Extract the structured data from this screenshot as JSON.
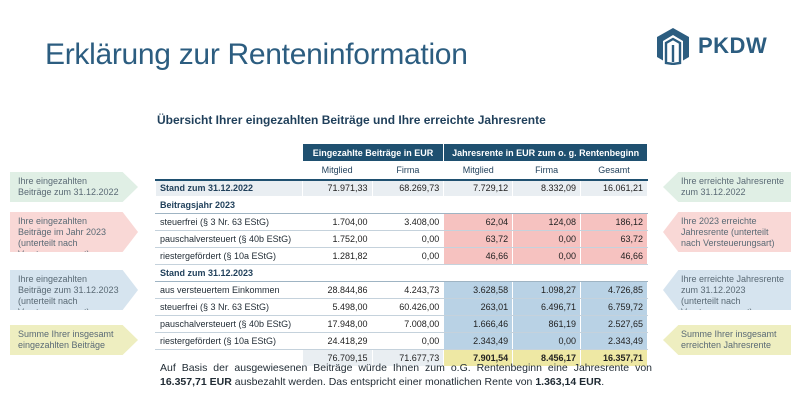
{
  "title": "Erklärung zur Renteninformation",
  "logo": {
    "text": "PKDW",
    "icon": "pkdw-house-logo-icon",
    "color": "#2c5d80"
  },
  "subtitle": "Übersicht Ihrer eingezahlten Beiträge und Ihre erreichte Jahresrente",
  "table": {
    "header_contrib": "Eingezahlte Beiträge in EUR",
    "header_pension": "Jahresrente in EUR zum o. g. Rentenbeginn",
    "sub_mitglied": "Mitglied",
    "sub_firma": "Firma",
    "sub_mitglied2": "Mitglied",
    "sub_firma2": "Firma",
    "sub_gesamt": "Gesamt",
    "stand_2022": {
      "label": "Stand zum 31.12.2022",
      "mitglied": "71.971,33",
      "firma": "68.269,73",
      "r_mitglied": "7.729,12",
      "r_firma": "8.332,09",
      "r_gesamt": "16.061,21"
    },
    "section_2023": "Beitragsjahr 2023",
    "rows_2023": [
      {
        "label": "steuerfrei (§ 3 Nr. 63 EStG)",
        "mitglied": "1.704,00",
        "firma": "3.408,00",
        "r_mitglied": "62,04",
        "r_firma": "124,08",
        "r_gesamt": "186,12"
      },
      {
        "label": "pauschalversteuert (§ 40b EStG)",
        "mitglied": "1.752,00",
        "firma": "0,00",
        "r_mitglied": "63,72",
        "r_firma": "0,00",
        "r_gesamt": "63,72"
      },
      {
        "label": "riestergefördert (§ 10a EStG)",
        "mitglied": "1.281,82",
        "firma": "0,00",
        "r_mitglied": "46,66",
        "r_firma": "0,00",
        "r_gesamt": "46,66"
      }
    ],
    "section_stand": "Stand zum 31.12.2023",
    "rows_stand": [
      {
        "label": "aus versteuertem Einkommen",
        "mitglied": "28.844,86",
        "firma": "4.243,73",
        "r_mitglied": "3.628,58",
        "r_firma": "1.098,27",
        "r_gesamt": "4.726,85"
      },
      {
        "label": "steuerfrei (§ 3 Nr. 63 EStG)",
        "mitglied": "5.498,00",
        "firma": "60.426,00",
        "r_mitglied": "263,01",
        "r_firma": "6.496,71",
        "r_gesamt": "6.759,72"
      },
      {
        "label": "pauschalversteuert (§ 40b EStG)",
        "mitglied": "17.948,00",
        "firma": "7.008,00",
        "r_mitglied": "1.666,46",
        "r_firma": "861,19",
        "r_gesamt": "2.527,65"
      },
      {
        "label": "riestergefördert (§ 10a EStG)",
        "mitglied": "24.418,29",
        "firma": "0,00",
        "r_mitglied": "2.343,49",
        "r_firma": "0,00",
        "r_gesamt": "2.343,49"
      }
    ],
    "total": {
      "mitglied": "76.709,15",
      "firma": "71.677,73",
      "r_mitglied": "7.901,54",
      "r_firma": "8.456,17",
      "r_gesamt": "16.357,71"
    }
  },
  "notes_left": [
    "Ihre eingezahlten Beiträge zum 31.12.2022",
    "Ihre eingezahlten Beiträge im Jahr 2023 (unterteilt nach Versteuerungsart)",
    "Ihre eingezahlten Beiträge zum 31.12.2023 (unterteilt nach Versteuerungsart)",
    "Summe Ihrer insgesamt eingezahlten Beiträge"
  ],
  "notes_right": [
    "Ihre erreichte Jahresrente zum 31.12.2022",
    "Ihre 2023 erreichte Jahresrente (unterteilt nach Versteuerungsart)",
    "Ihre erreichte Jahresrente zum 31.12.2023 (unterteilt nach Versteuerungsart)",
    "Summe Ihrer insgesamt erreichten Jahresrente"
  ],
  "footer": {
    "text1": "Auf Basis der ausgewiesenen Beiträge würde Ihnen zum o.G. Rentenbeginn eine Jahresrente von",
    "amount1": "16.357,71 EUR",
    "text2": " ausbezahlt werden. Das entspricht einer monatlichen Rente von ",
    "amount2": "1.363,14 EUR",
    "text3": "."
  }
}
